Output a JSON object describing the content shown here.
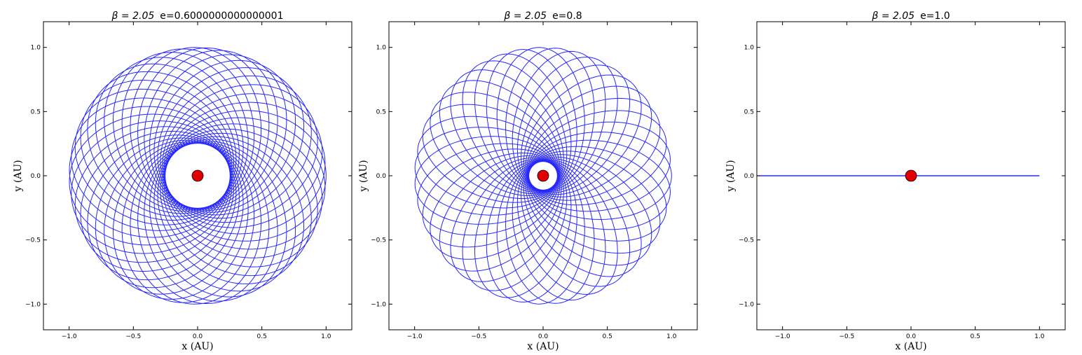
{
  "figure": {
    "panels": [
      {
        "title_math": "β = 2.05",
        "title_text": "e=0.6000000000000001",
        "xlabel": "x (AU)",
        "ylabel": "y (AU)"
      },
      {
        "title_math": "β = 2.05",
        "title_text": "e=0.8",
        "xlabel": "x (AU)",
        "ylabel": "y (AU)"
      },
      {
        "title_math": "β = 2.05",
        "title_text": "e=1.0",
        "xlabel": "x (AU)",
        "ylabel": "y (AU)"
      }
    ]
  },
  "chart_data": [
    {
      "type": "line",
      "title": "β = 2.05  e=0.6000000000000001",
      "xlabel": "x (AU)",
      "ylabel": "y (AU)",
      "xlim": [
        -1.2,
        1.2
      ],
      "ylim": [
        -1.2,
        1.2
      ],
      "xticks": [
        "−1.0",
        "−0.5",
        "0.0",
        "0.5",
        "1.0"
      ],
      "yticks": [
        "−1.0",
        "−0.5",
        "0.0",
        "0.5",
        "1.0"
      ],
      "orbit": {
        "eccentricity": 0.6,
        "aphelion_distance": 1.0,
        "precession_turns": 1.0,
        "orbits_drawn": 40
      },
      "star": {
        "x": 0.0,
        "y": 0.0,
        "color": "#e00000"
      },
      "line_color": "#0000ff"
    },
    {
      "type": "line",
      "title": "β = 2.05  e=0.8",
      "xlabel": "x (AU)",
      "ylabel": "y (AU)",
      "xlim": [
        -1.2,
        1.2
      ],
      "ylim": [
        -1.2,
        1.2
      ],
      "xticks": [
        "−1.0",
        "−0.5",
        "0.0",
        "0.5",
        "1.0"
      ],
      "yticks": [
        "−1.0",
        "−0.5",
        "0.0",
        "0.5",
        "1.0"
      ],
      "orbit": {
        "eccentricity": 0.8,
        "aphelion_distance": 1.0,
        "precession_turns": 1.0,
        "orbits_drawn": 40
      },
      "star": {
        "x": 0.0,
        "y": 0.0,
        "color": "#e00000"
      },
      "line_color": "#0000ff"
    },
    {
      "type": "line",
      "title": "β = 2.05  e=1.0",
      "xlabel": "x (AU)",
      "ylabel": "y (AU)",
      "xlim": [
        -1.2,
        1.2
      ],
      "ylim": [
        -1.2,
        1.2
      ],
      "xticks": [
        "−1.0",
        "−0.5",
        "0.0",
        "0.5",
        "1.0"
      ],
      "yticks": [
        "−1.0",
        "−0.5",
        "0.0",
        "0.5",
        "1.0"
      ],
      "series": [
        {
          "x": [
            -1.2,
            1.0
          ],
          "y": [
            0.0,
            0.0
          ]
        }
      ],
      "star": {
        "x": 0.0,
        "y": 0.0,
        "color": "#e00000"
      },
      "line_color": "#0000ff"
    }
  ]
}
